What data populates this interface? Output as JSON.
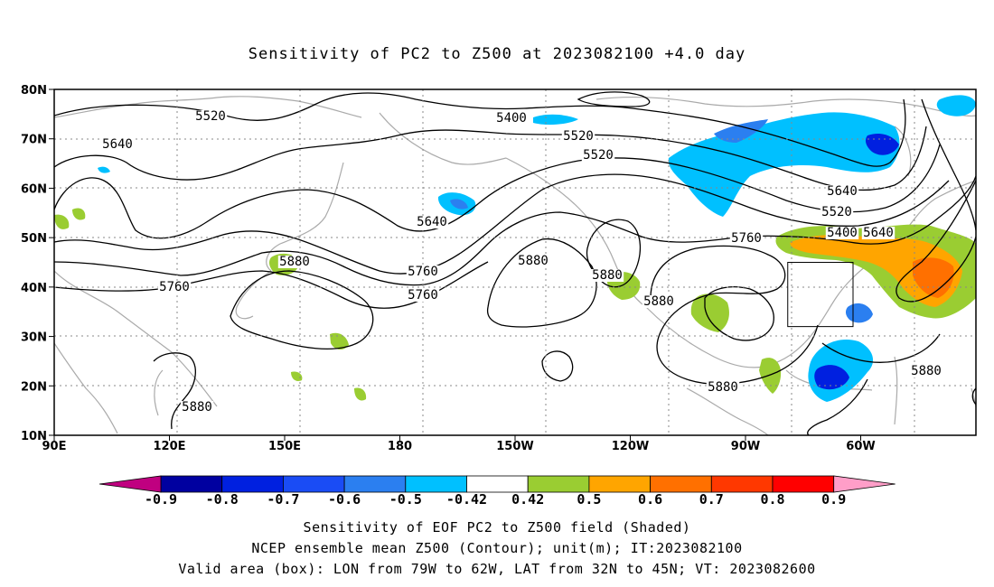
{
  "title": "Sensitivity of PC2 to Z500 at 2023082100 +4.0 day",
  "lat_labels": [
    "80N",
    "70N",
    "60N",
    "50N",
    "40N",
    "30N",
    "20N",
    "10N"
  ],
  "lon_labels": [
    "90E",
    "120E",
    "150E",
    "180",
    "150W",
    "120W",
    "90W",
    "60W"
  ],
  "contour_labels": [
    "5520",
    "5400",
    "5640",
    "5520",
    "5640",
    "5520",
    "5880",
    "5640",
    "5760",
    "5880",
    "5760",
    "5880",
    "5760",
    "5880",
    "5760",
    "5400",
    "5520",
    "5640",
    "5880",
    "5880",
    "5880"
  ],
  "colorbar": {
    "labels": [
      "-0.9",
      "-0.8",
      "-0.7",
      "-0.6",
      "-0.5",
      "-0.42",
      "0.42",
      "0.5",
      "0.6",
      "0.7",
      "0.8",
      "0.9"
    ],
    "colors": [
      "#0000a0",
      "#0020e0",
      "#1a4cf5",
      "#2b7ff0",
      "#00c0ff",
      "#ffffff",
      "#9acd32",
      "#ffa500",
      "#ff7000",
      "#ff3800",
      "#ff0000"
    ],
    "low_end_color": "#c00080",
    "high_end_color": "#ff9ec8"
  },
  "valid_box": {
    "lon_west": -79,
    "lon_east": -62,
    "lat_south": 32,
    "lat_north": 45
  },
  "captions": [
    "Sensitivity of EOF PC2 to Z500 field (Shaded)",
    "NCEP ensemble mean Z500 (Contour); unit(m); IT:2023082100",
    "Valid area (box): LON from 79W to 62W, LAT from 32N to 45N; VT: 2023082600"
  ]
}
